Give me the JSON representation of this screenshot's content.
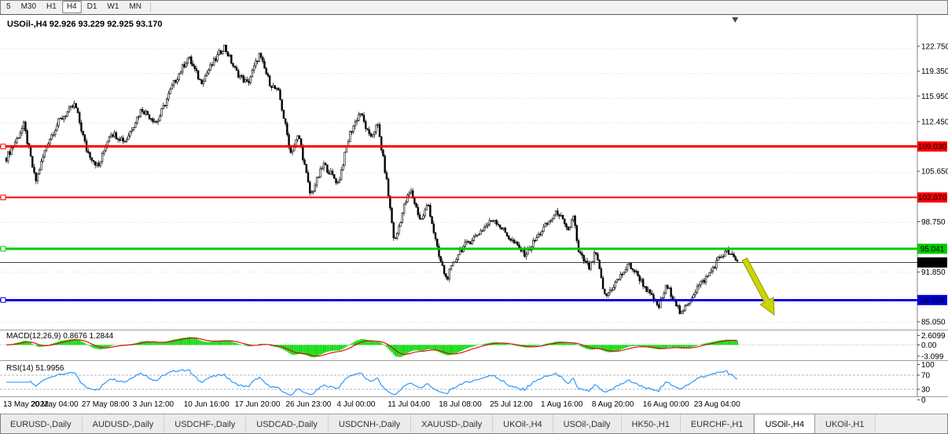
{
  "toolbar": {
    "periods": [
      {
        "label": "5",
        "active": false
      },
      {
        "label": "M30",
        "active": false
      },
      {
        "label": "H1",
        "active": false
      },
      {
        "label": "H4",
        "active": true
      },
      {
        "label": "D1",
        "active": false
      },
      {
        "label": "W1",
        "active": false
      },
      {
        "label": "MN",
        "active": false
      }
    ]
  },
  "chart": {
    "title": "USOil-,H4 92.926 93.229 92.925 93.170"
  },
  "chart_data": {
    "type": "candlestick",
    "symbol": "USOil-",
    "timeframe": "H4",
    "ohlc": {
      "open": "92.926",
      "high": "93.229",
      "low": "92.925",
      "close": "93.170"
    },
    "price_axis": {
      "ticks": [
        "122.750",
        "119.350",
        "115.950",
        "112.450",
        "105.650",
        "98.750",
        "91.850",
        "85.050"
      ],
      "visible_range": [
        84.1,
        126.9
      ]
    },
    "time_axis": {
      "labels": [
        "13 May 2022",
        "20 May 04:00",
        "27 May 08:00",
        "3 Jun 12:00",
        "10 Jun 16:00",
        "17 Jun 20:00",
        "26 Jun 23:00",
        "4 Jul 00:00",
        "11 Jul 04:00",
        "18 Jul 08:00",
        "25 Jul 12:00",
        "1 Aug 16:00",
        "8 Aug 20:00",
        "16 Aug 00:00",
        "23 Aug 04:00"
      ]
    },
    "levels": [
      {
        "label": "109.030",
        "price": 109.03,
        "color": "#ff0000",
        "width": 3,
        "name": "resistance-line-upper-red"
      },
      {
        "label": "102.070",
        "price": 102.07,
        "color": "#ff0000",
        "width": 2,
        "name": "resistance-line-lower-red"
      },
      {
        "label": "95.041",
        "price": 95.041,
        "color": "#00cc00",
        "width": 3,
        "name": "resistance-line-green"
      },
      {
        "label": "88.028",
        "price": 88.028,
        "color": "#0000e0",
        "width": 3,
        "name": "support-line-blue"
      }
    ],
    "current_price": {
      "label": "93.170",
      "price": 93.17,
      "color": "#000000"
    },
    "candle_count": 420,
    "price_path": [
      [
        0.0,
        107.5
      ],
      [
        0.013,
        109.8
      ],
      [
        0.024,
        112.0
      ],
      [
        0.04,
        104.2
      ],
      [
        0.056,
        109.5
      ],
      [
        0.072,
        112.5
      ],
      [
        0.094,
        114.8
      ],
      [
        0.11,
        108.5
      ],
      [
        0.126,
        106.2
      ],
      [
        0.142,
        111.0
      ],
      [
        0.163,
        109.8
      ],
      [
        0.185,
        114.2
      ],
      [
        0.206,
        112.3
      ],
      [
        0.228,
        117.5
      ],
      [
        0.249,
        121.3
      ],
      [
        0.266,
        117.8
      ],
      [
        0.282,
        120.3
      ],
      [
        0.298,
        122.8
      ],
      [
        0.314,
        119.3
      ],
      [
        0.33,
        117.6
      ],
      [
        0.346,
        121.6
      ],
      [
        0.36,
        117.8
      ],
      [
        0.373,
        116.3
      ],
      [
        0.389,
        108.2
      ],
      [
        0.4,
        110.6
      ],
      [
        0.416,
        102.3
      ],
      [
        0.434,
        106.6
      ],
      [
        0.454,
        104.0
      ],
      [
        0.47,
        110.8
      ],
      [
        0.484,
        113.8
      ],
      [
        0.497,
        110.2
      ],
      [
        0.508,
        112.0
      ],
      [
        0.52,
        104.5
      ],
      [
        0.531,
        95.8
      ],
      [
        0.545,
        101.2
      ],
      [
        0.553,
        103.0
      ],
      [
        0.567,
        98.8
      ],
      [
        0.577,
        101.3
      ],
      [
        0.591,
        94.2
      ],
      [
        0.602,
        90.9
      ],
      [
        0.62,
        94.8
      ],
      [
        0.642,
        96.8
      ],
      [
        0.667,
        99.2
      ],
      [
        0.69,
        96.3
      ],
      [
        0.71,
        94.3
      ],
      [
        0.733,
        97.6
      ],
      [
        0.755,
        100.2
      ],
      [
        0.768,
        97.2
      ],
      [
        0.776,
        99.8
      ],
      [
        0.782,
        94.6
      ],
      [
        0.798,
        92.3
      ],
      [
        0.806,
        94.6
      ],
      [
        0.819,
        88.4
      ],
      [
        0.835,
        90.6
      ],
      [
        0.852,
        92.9
      ],
      [
        0.865,
        91.2
      ],
      [
        0.884,
        88.2
      ],
      [
        0.892,
        87.0
      ],
      [
        0.903,
        89.9
      ],
      [
        0.914,
        88.2
      ],
      [
        0.923,
        85.9
      ],
      [
        0.932,
        87.6
      ],
      [
        0.946,
        89.9
      ],
      [
        0.959,
        91.2
      ],
      [
        0.975,
        93.8
      ],
      [
        0.986,
        94.7
      ],
      [
        1.0,
        93.2
      ]
    ],
    "indicators": {
      "macd": {
        "label": "MACD(12,26,9) 0.8676 1.2844",
        "fast": 12,
        "slow": 26,
        "signal": 9,
        "value_main": "0.8676",
        "value_signal": "1.2844",
        "scale_labels": [
          "2.6099",
          "0.00",
          "-3.099"
        ],
        "histogram_color": "#00d800",
        "signal_color": "#e00000"
      },
      "rsi": {
        "label": "RSI(14) 51.9956",
        "period": 14,
        "value": "51.9956",
        "scale_labels": [
          "100",
          "70",
          "30",
          "0"
        ],
        "levels": [
          70,
          30
        ],
        "line_color": "#1e90ff"
      }
    },
    "annotations": [
      {
        "type": "arrow",
        "name": "sell-arrow",
        "color": "#ccd405",
        "outline": "#939900",
        "from": {
          "t": 1.01,
          "price": 93.6
        },
        "to": {
          "t": 1.0505,
          "price": 86.0
        }
      }
    ],
    "shift_marker_t": 0.997
  },
  "tabs": {
    "items": [
      {
        "label": "EURUSD-,Daily",
        "active": false
      },
      {
        "label": "AUDUSD-,Daily",
        "active": false
      },
      {
        "label": "USDCHF-,Daily",
        "active": false
      },
      {
        "label": "USDCAD-,Daily",
        "active": false
      },
      {
        "label": "USDCNH-,Daily",
        "active": false
      },
      {
        "label": "XAUUSD-,Daily",
        "active": false
      },
      {
        "label": "UKOil-,H4",
        "active": false
      },
      {
        "label": "USOil-,Daily",
        "active": false
      },
      {
        "label": "HK50-,H1",
        "active": false
      },
      {
        "label": "EURCHF-,H1",
        "active": false
      },
      {
        "label": "USOil-,H4",
        "active": true
      },
      {
        "label": "UKOil-,H1",
        "active": false
      }
    ]
  }
}
